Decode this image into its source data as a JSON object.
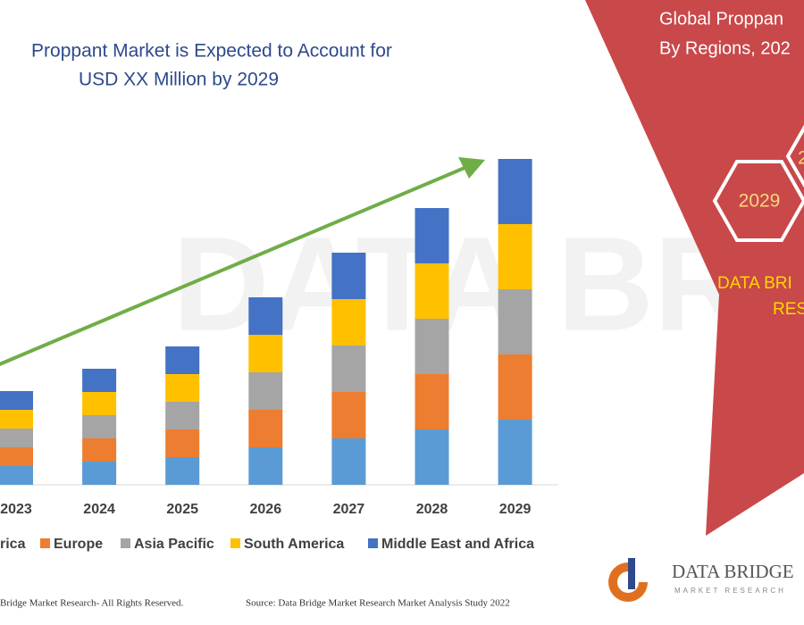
{
  "chart_data": {
    "type": "stacked-bar",
    "title_lines": [
      "Proppant Market is Expected to Account for",
      "USD XX Million by 2029"
    ],
    "categories": [
      "2023",
      "2024",
      "2025",
      "2026",
      "2027",
      "2028",
      "2029"
    ],
    "series": [
      {
        "name": "rica",
        "color": "#5b9bd5",
        "values": [
          21,
          26,
          31,
          42,
          52,
          62,
          73
        ]
      },
      {
        "name": "Europe",
        "color": "#ed7d31",
        "values": [
          21,
          26,
          31,
          42,
          52,
          62,
          73
        ]
      },
      {
        "name": "Asia Pacific",
        "color": "#a5a5a5",
        "values": [
          21,
          26,
          31,
          42,
          52,
          62,
          73
        ]
      },
      {
        "name": "South America",
        "color": "#ffc000",
        "values": [
          21,
          26,
          31,
          42,
          52,
          62,
          73
        ]
      },
      {
        "name": "Middle East and Africa",
        "color": "#4472c4",
        "values": [
          21,
          26,
          31,
          42,
          52,
          62,
          73
        ]
      }
    ],
    "arrow_color": "#70ad47"
  },
  "side_panel": {
    "title_lines": [
      "Global Proppan",
      "By Regions, 202"
    ],
    "hexagons": [
      "2029",
      "2"
    ],
    "brand_lines": [
      "DATA BRI",
      "RES"
    ]
  },
  "footer": {
    "left": "Bridge Market Research- All Rights Reserved.",
    "right": "Source: Data Bridge Market Research Market Analysis Study 2022"
  },
  "logo": {
    "name": "DATA BRIDGE",
    "tagline": "MARKET RESEARCH"
  }
}
